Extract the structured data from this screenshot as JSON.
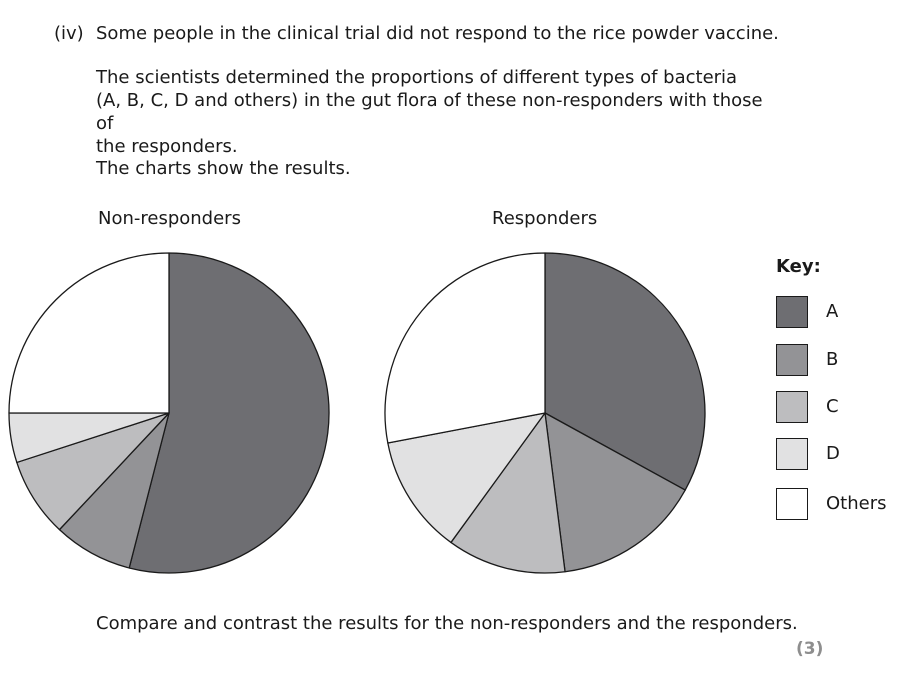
{
  "question": {
    "number": "(iv)",
    "text": "Some people in the clinical trial did not respond to the rice powder vaccine.",
    "paragraph_lines": [
      "The scientists determined the proportions of different types of bacteria",
      "(A, B, C, D and others) in the gut flora of these non-responders with those of",
      "the responders."
    ],
    "charts_intro": "The charts show the results.",
    "prompt": "Compare and contrast the results for the non-responders and the responders.",
    "marks": "(3)"
  },
  "key": {
    "label": "Key:",
    "items": [
      {
        "name": "A",
        "color": "#6e6e72"
      },
      {
        "name": "B",
        "color": "#939396"
      },
      {
        "name": "C",
        "color": "#bdbdbf"
      },
      {
        "name": "D",
        "color": "#e1e1e2"
      },
      {
        "name": "Others",
        "color": "#ffffff"
      }
    ]
  },
  "chart_data": [
    {
      "type": "pie",
      "title": "Non-responders",
      "categories": [
        "A",
        "B",
        "C",
        "D",
        "Others"
      ],
      "values": [
        54,
        8,
        8,
        5,
        25
      ]
    },
    {
      "type": "pie",
      "title": "Responders",
      "categories": [
        "A",
        "B",
        "C",
        "D",
        "Others"
      ],
      "values": [
        33,
        15,
        12,
        12,
        28
      ]
    }
  ]
}
